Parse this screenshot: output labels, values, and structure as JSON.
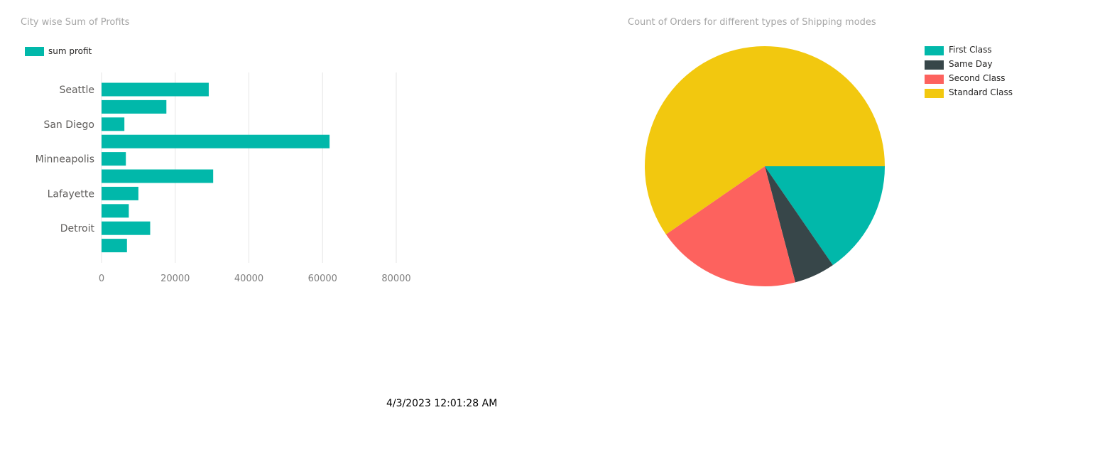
{
  "colors": {
    "teal": "#01B8AA",
    "dark": "#374649",
    "red": "#FD625E",
    "yellow": "#F2C80F"
  },
  "chart_data": [
    {
      "type": "bar",
      "orientation": "horizontal",
      "title": "City wise Sum of Profits",
      "legend": [
        "sum profit"
      ],
      "categories": [
        "Seattle",
        "",
        "San Diego",
        "",
        "Minneapolis",
        "",
        "Lafayette",
        "",
        "Detroit",
        ""
      ],
      "series": [
        {
          "name": "sum profit",
          "values": [
            29100,
            17600,
            6200,
            61900,
            6600,
            30300,
            10000,
            7400,
            13200,
            6900
          ]
        }
      ],
      "xlim": [
        0,
        80000
      ],
      "xticks": [
        "0",
        "20000",
        "40000",
        "60000",
        "80000"
      ],
      "grid": true
    },
    {
      "type": "pie",
      "title": "Count of Orders for different types of Shipping modes",
      "legend_position": "top-right",
      "labels": [
        "First Class",
        "Same Day",
        "Second Class",
        "Standard Class"
      ],
      "values": [
        15.4,
        5.5,
        19.5,
        59.6
      ]
    }
  ],
  "timestamp": "4/3/2023 12:01:28 AM"
}
